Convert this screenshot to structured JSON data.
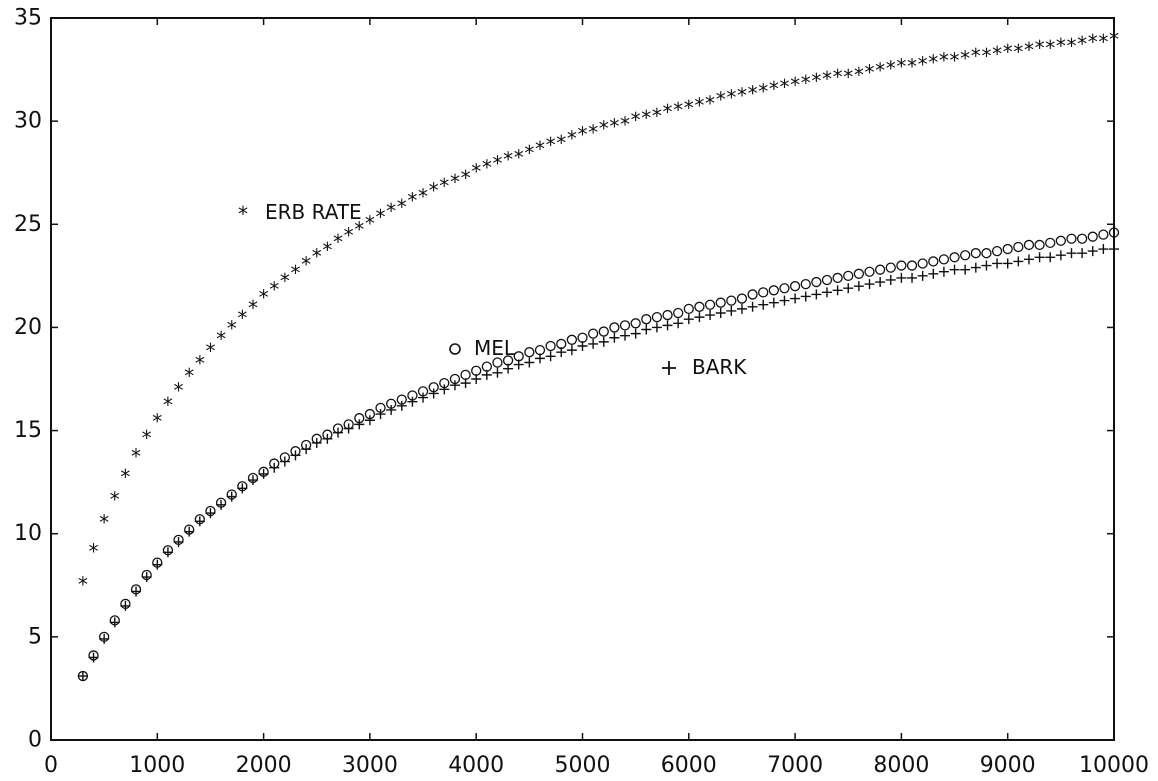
{
  "chart_data": {
    "type": "scatter",
    "xlim": [
      0,
      10000
    ],
    "ylim": [
      0,
      35
    ],
    "xticks": [
      0,
      1000,
      2000,
      3000,
      4000,
      5000,
      6000,
      7000,
      8000,
      9000,
      10000
    ],
    "yticks": [
      0,
      5,
      10,
      15,
      20,
      25,
      30,
      35
    ],
    "x": [
      300,
      400,
      500,
      600,
      700,
      800,
      900,
      1000,
      1100,
      1200,
      1300,
      1400,
      1500,
      1600,
      1700,
      1800,
      1900,
      2000,
      2100,
      2200,
      2300,
      2400,
      2500,
      2600,
      2700,
      2800,
      2900,
      3000,
      3100,
      3200,
      3300,
      3400,
      3500,
      3600,
      3700,
      3800,
      3900,
      4000,
      4100,
      4200,
      4300,
      4400,
      4500,
      4600,
      4700,
      4800,
      4900,
      5000,
      5100,
      5200,
      5300,
      5400,
      5500,
      5600,
      5700,
      5800,
      5900,
      6000,
      6100,
      6200,
      6300,
      6400,
      6500,
      6600,
      6700,
      6800,
      6900,
      7000,
      7100,
      7200,
      7300,
      7400,
      7500,
      7600,
      7700,
      7800,
      7900,
      8000,
      8100,
      8200,
      8300,
      8400,
      8500,
      8600,
      8700,
      8800,
      8900,
      9000,
      9100,
      9200,
      9300,
      9400,
      9500,
      9600,
      9700,
      9800,
      9900,
      10000
    ],
    "series": [
      {
        "name": "ERB RATE",
        "marker": "star",
        "values": [
          7.5,
          9.1,
          10.5,
          11.6,
          12.7,
          13.7,
          14.6,
          15.4,
          16.2,
          16.9,
          17.6,
          18.2,
          18.8,
          19.4,
          19.9,
          20.4,
          20.9,
          21.4,
          21.8,
          22.2,
          22.6,
          23.0,
          23.4,
          23.7,
          24.1,
          24.4,
          24.7,
          25.0,
          25.3,
          25.6,
          25.8,
          26.1,
          26.3,
          26.6,
          26.8,
          27.0,
          27.2,
          27.5,
          27.7,
          27.9,
          28.1,
          28.2,
          28.4,
          28.6,
          28.8,
          28.9,
          29.1,
          29.3,
          29.4,
          29.6,
          29.7,
          29.8,
          30.0,
          30.1,
          30.2,
          30.4,
          30.5,
          30.6,
          30.7,
          30.8,
          31.0,
          31.1,
          31.2,
          31.3,
          31.4,
          31.5,
          31.6,
          31.7,
          31.8,
          31.9,
          32.0,
          32.1,
          32.1,
          32.2,
          32.3,
          32.4,
          32.5,
          32.6,
          32.6,
          32.7,
          32.8,
          32.9,
          32.9,
          33.0,
          33.1,
          33.1,
          33.2,
          33.3,
          33.3,
          33.4,
          33.5,
          33.5,
          33.6,
          33.6,
          33.7,
          33.8,
          33.8,
          33.9
        ]
      },
      {
        "name": "MEL",
        "marker": "circle",
        "values": [
          3.1,
          4.1,
          5.0,
          5.8,
          6.6,
          7.3,
          8.0,
          8.6,
          9.2,
          9.7,
          10.2,
          10.7,
          11.1,
          11.5,
          11.9,
          12.3,
          12.7,
          13.0,
          13.4,
          13.7,
          14.0,
          14.3,
          14.6,
          14.8,
          15.1,
          15.3,
          15.6,
          15.8,
          16.1,
          16.3,
          16.5,
          16.7,
          16.9,
          17.1,
          17.3,
          17.5,
          17.7,
          17.9,
          18.1,
          18.3,
          18.4,
          18.6,
          18.8,
          18.9,
          19.1,
          19.2,
          19.4,
          19.5,
          19.7,
          19.8,
          20.0,
          20.1,
          20.2,
          20.4,
          20.5,
          20.6,
          20.7,
          20.9,
          21.0,
          21.1,
          21.2,
          21.3,
          21.4,
          21.6,
          21.7,
          21.8,
          21.9,
          22.0,
          22.1,
          22.2,
          22.3,
          22.4,
          22.5,
          22.6,
          22.7,
          22.8,
          22.9,
          23.0,
          23.0,
          23.1,
          23.2,
          23.3,
          23.4,
          23.5,
          23.6,
          23.6,
          23.7,
          23.8,
          23.9,
          24.0,
          24.0,
          24.1,
          24.2,
          24.3,
          24.3,
          24.4,
          24.5,
          24.6
        ]
      },
      {
        "name": "BARK",
        "marker": "plus",
        "values": [
          3.1,
          4.0,
          4.9,
          5.7,
          6.5,
          7.2,
          7.9,
          8.5,
          9.1,
          9.6,
          10.1,
          10.6,
          11.0,
          11.4,
          11.8,
          12.2,
          12.6,
          12.9,
          13.2,
          13.5,
          13.8,
          14.1,
          14.4,
          14.6,
          14.9,
          15.1,
          15.3,
          15.5,
          15.8,
          16.0,
          16.2,
          16.4,
          16.6,
          16.8,
          17.0,
          17.2,
          17.3,
          17.5,
          17.7,
          17.8,
          18.0,
          18.2,
          18.3,
          18.5,
          18.6,
          18.8,
          18.9,
          19.1,
          19.2,
          19.3,
          19.5,
          19.6,
          19.7,
          19.9,
          20.0,
          20.1,
          20.2,
          20.4,
          20.5,
          20.6,
          20.7,
          20.8,
          20.9,
          21.0,
          21.1,
          21.2,
          21.3,
          21.4,
          21.5,
          21.6,
          21.7,
          21.8,
          21.9,
          22.0,
          22.1,
          22.2,
          22.3,
          22.4,
          22.4,
          22.5,
          22.6,
          22.7,
          22.8,
          22.8,
          22.9,
          23.0,
          23.1,
          23.1,
          23.2,
          23.3,
          23.4,
          23.4,
          23.5,
          23.6,
          23.6,
          23.7,
          23.8,
          23.8
        ]
      }
    ],
    "legend": [
      {
        "label": "ERB RATE",
        "marker": "star"
      },
      {
        "label": "MEL",
        "marker": "circle"
      },
      {
        "label": "BARK",
        "marker": "plus"
      }
    ],
    "title": "",
    "xlabel": "",
    "ylabel": "",
    "grid": false,
    "colors": {
      "ink": "#111111",
      "background": "#ffffff"
    }
  }
}
